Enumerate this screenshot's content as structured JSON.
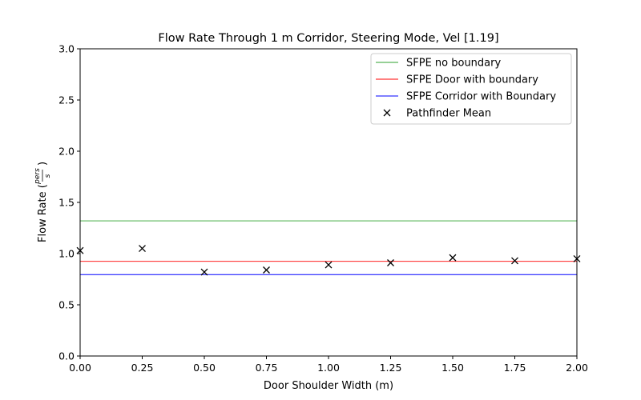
{
  "chart_data": {
    "type": "line",
    "title": "Flow Rate Through 1 m Corridor, Steering Mode, Vel [1.19]",
    "xlabel": "Door Shoulder Width (m)",
    "ylabel": "Flow Rate (pers/s)",
    "ylabel_main": "Flow Rate (",
    "ylabel_num": "pers",
    "ylabel_den": "s",
    "ylabel_close": ")",
    "xlim": [
      0,
      2
    ],
    "ylim": [
      0,
      3
    ],
    "xticks": [
      "0.00",
      "0.25",
      "0.50",
      "0.75",
      "1.00",
      "1.25",
      "1.50",
      "1.75",
      "2.00"
    ],
    "xtick_values": [
      0,
      0.25,
      0.5,
      0.75,
      1.0,
      1.25,
      1.5,
      1.75,
      2.0
    ],
    "yticks": [
      "0.0",
      "0.5",
      "1.0",
      "1.5",
      "2.0",
      "2.5",
      "3.0"
    ],
    "ytick_values": [
      0,
      0.5,
      1.0,
      1.5,
      2.0,
      2.5,
      3.0
    ],
    "grid": false,
    "legend_position": "top-right",
    "hlines": [
      {
        "name": "SFPE no boundary",
        "value": 1.32,
        "color": "#2ca02c"
      },
      {
        "name": "SFPE Door with boundary",
        "value": 0.924,
        "color": "#ff0000"
      },
      {
        "name": "SFPE Corridor with Boundary",
        "value": 0.795,
        "color": "#0000ff"
      }
    ],
    "scatter": {
      "name": "Pathfinder Mean",
      "color": "#000000",
      "x": [
        0,
        0.25,
        0.5,
        0.75,
        1.0,
        1.25,
        1.5,
        1.75,
        2.0
      ],
      "y": [
        1.03,
        1.05,
        0.82,
        0.84,
        0.89,
        0.91,
        0.96,
        0.93,
        0.95
      ]
    }
  }
}
